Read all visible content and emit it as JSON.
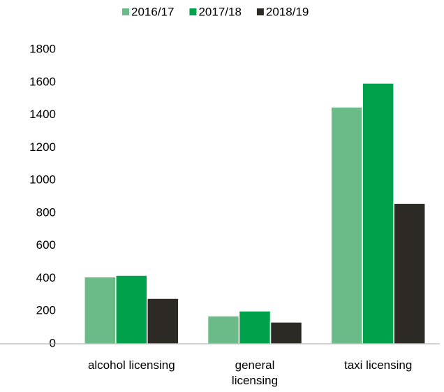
{
  "chart_data": {
    "type": "bar",
    "categories": [
      "alcohol licensing",
      "general licensing",
      "taxi licensing"
    ],
    "series": [
      {
        "name": "2016/17",
        "color": "#6abb87",
        "values": [
          410,
          171,
          1449
        ]
      },
      {
        "name": "2017/18",
        "color": "#00a14b",
        "values": [
          419,
          201,
          1595
        ]
      },
      {
        "name": "2018/19",
        "color": "#2d2a26",
        "values": [
          278,
          133,
          859
        ]
      }
    ],
    "ylim": [
      0,
      1800
    ],
    "yticks": [
      0,
      200,
      400,
      600,
      800,
      1000,
      1200,
      1400,
      1600,
      1800
    ],
    "legend": "top"
  }
}
